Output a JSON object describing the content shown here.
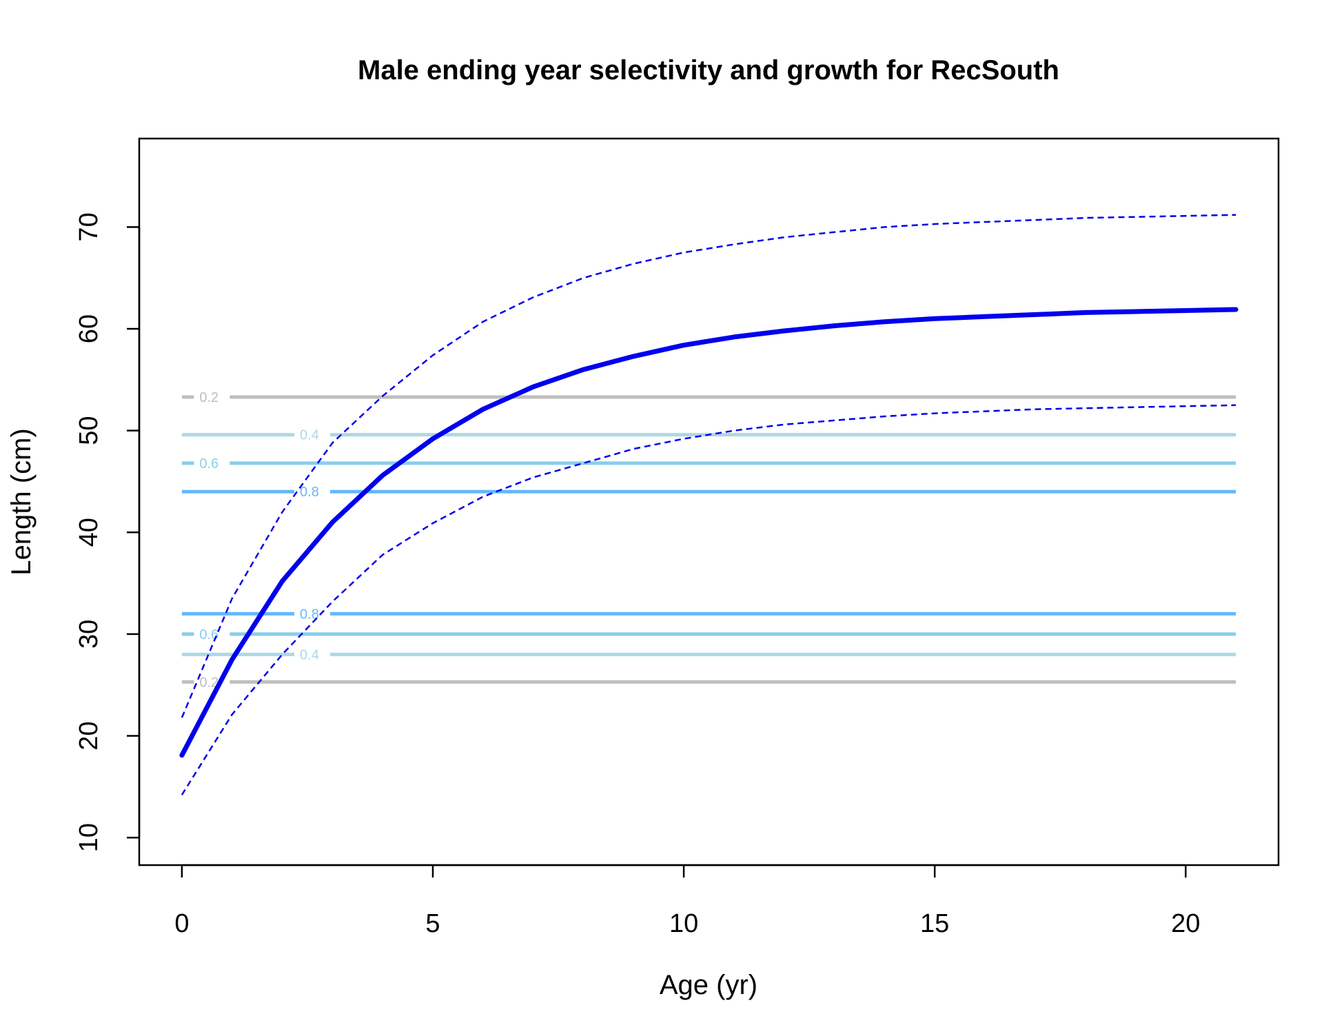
{
  "chart_data": {
    "type": "line",
    "title": "Male ending year selectivity and growth for RecSouth",
    "xlabel": "Age (yr)",
    "ylabel": "Length (cm)",
    "xlim": [
      -0.85,
      21.85
    ],
    "ylim": [
      7.3,
      78.7
    ],
    "x_ticks": [
      0,
      5,
      10,
      15,
      20
    ],
    "y_ticks": [
      10,
      20,
      30,
      40,
      50,
      60,
      70
    ],
    "grid": false,
    "legend": "none",
    "growth": {
      "color": "#0000ee",
      "ages": [
        0,
        1,
        2,
        3,
        4,
        5,
        6,
        7,
        8,
        9,
        10,
        11,
        12,
        13,
        14,
        15,
        16,
        17,
        18,
        19,
        20,
        21
      ],
      "mean": [
        18.1,
        27.5,
        35.2,
        41.0,
        45.6,
        49.2,
        52.1,
        54.3,
        56.0,
        57.3,
        58.4,
        59.2,
        59.8,
        60.3,
        60.7,
        61.0,
        61.2,
        61.4,
        61.6,
        61.7,
        61.8,
        61.9
      ],
      "upper": [
        21.8,
        33.5,
        42.0,
        48.8,
        53.4,
        57.4,
        60.7,
        63.1,
        65.0,
        66.4,
        67.5,
        68.3,
        69.0,
        69.5,
        70.0,
        70.3,
        70.5,
        70.7,
        70.9,
        71.0,
        71.1,
        71.2
      ],
      "lower": [
        14.2,
        22.1,
        28.0,
        33.2,
        37.8,
        40.9,
        43.5,
        45.4,
        46.8,
        48.2,
        49.2,
        50.0,
        50.6,
        51.0,
        51.4,
        51.7,
        51.9,
        52.1,
        52.2,
        52.3,
        52.4,
        52.5
      ]
    },
    "selectivity_contours": [
      {
        "level": "0.2",
        "y": 53.3,
        "color": "#bebebe",
        "label_x": 0.35
      },
      {
        "level": "0.4",
        "y": 49.6,
        "color": "#add8e6",
        "label_x": 2.35
      },
      {
        "level": "0.6",
        "y": 46.8,
        "color": "#87ceeb",
        "label_x": 0.35
      },
      {
        "level": "0.8",
        "y": 44.0,
        "color": "#63b8ff",
        "label_x": 2.35
      },
      {
        "level": "0.8",
        "y": 32.0,
        "color": "#63b8ff",
        "label_x": 2.35
      },
      {
        "level": "0.6",
        "y": 30.0,
        "color": "#87ceeb",
        "label_x": 0.35
      },
      {
        "level": "0.4",
        "y": 28.0,
        "color": "#add8e6",
        "label_x": 2.35
      },
      {
        "level": "0.2",
        "y": 25.3,
        "color": "#bebebe",
        "label_x": 0.35
      }
    ],
    "contour_x_range": [
      0,
      21
    ]
  }
}
